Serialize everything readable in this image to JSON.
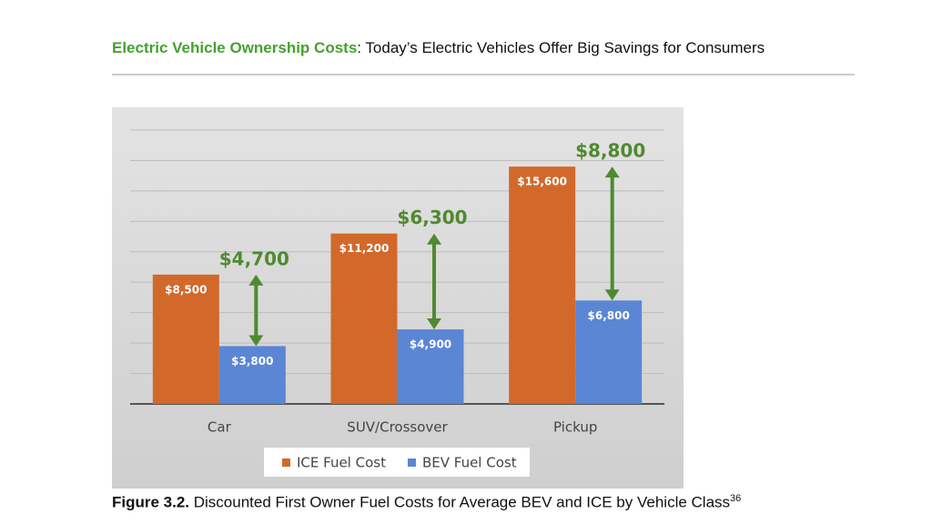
{
  "header": {
    "title_bold": "Electric Vehicle Ownership Costs",
    "title_rest": ": Today’s Electric Vehicles Offer Big Savings for Consumers"
  },
  "chart_data": {
    "type": "bar",
    "categories": [
      "Car",
      "SUV/Crossover",
      "Pickup"
    ],
    "series": [
      {
        "name": "ICE Fuel Cost",
        "color": "#d2692b",
        "values": [
          8500,
          11200,
          15600
        ],
        "value_labels": [
          "$8,500",
          "$11,200",
          "$15,600"
        ]
      },
      {
        "name": "BEV Fuel Cost",
        "color": "#5b86d4",
        "values": [
          3800,
          4900,
          6800
        ],
        "value_labels": [
          "$3,800",
          "$4,900",
          "$6,800"
        ]
      }
    ],
    "annotations": [
      {
        "value": 4700,
        "label": "$4,700"
      },
      {
        "value": 6300,
        "label": "$6,300"
      },
      {
        "value": 8800,
        "label": "$8,800"
      }
    ],
    "annotation_color": "#4f8a2f",
    "ylim": [
      0,
      18000
    ],
    "yticks": [
      0,
      2000,
      4000,
      6000,
      8000,
      10000,
      12000,
      14000,
      16000,
      18000
    ],
    "grid": true,
    "legend": "bottom"
  },
  "caption": {
    "label": "Figure 3.2.",
    "text": " Discounted First Owner Fuel Costs for Average BEV and ICE by Vehicle Class",
    "superscript": "36"
  }
}
